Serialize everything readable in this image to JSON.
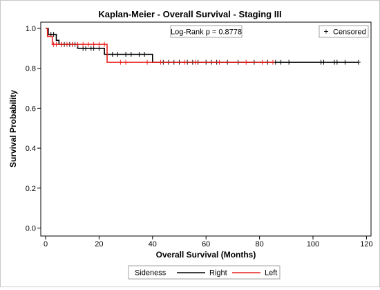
{
  "chart_data": {
    "type": "line",
    "title": "Kaplan-Meier - Overall Survival - Staging III",
    "xlabel": "Overall Survival (Months)",
    "ylabel": "Survival Probability",
    "xlim": [
      0,
      120
    ],
    "ylim": [
      0.0,
      1.0
    ],
    "xticks": [
      0,
      20,
      40,
      60,
      80,
      100,
      120
    ],
    "yticks": [
      "0.0",
      "0.2",
      "0.4",
      "0.6",
      "0.8",
      "1.0"
    ],
    "grid": false,
    "annotation": "Log-Rank p = 0.8778",
    "censor_legend": {
      "symbol": "+",
      "label": "Censored"
    },
    "legend_title": "Sideness",
    "legend_position": "bottom",
    "series": [
      {
        "name": "Right",
        "color": "#000000",
        "steps": [
          [
            0,
            1.0
          ],
          [
            1,
            0.97
          ],
          [
            4,
            0.94
          ],
          [
            5,
            0.92
          ],
          [
            12,
            0.9
          ],
          [
            13,
            0.9
          ],
          [
            22,
            0.87
          ],
          [
            40,
            0.83
          ],
          [
            117,
            0.83
          ]
        ],
        "censored": [
          [
            2,
            0.97
          ],
          [
            3,
            0.97
          ],
          [
            6,
            0.92
          ],
          [
            7,
            0.92
          ],
          [
            8,
            0.92
          ],
          [
            9,
            0.92
          ],
          [
            10,
            0.92
          ],
          [
            11,
            0.92
          ],
          [
            14,
            0.9
          ],
          [
            15,
            0.9
          ],
          [
            17,
            0.9
          ],
          [
            18,
            0.9
          ],
          [
            20,
            0.9
          ],
          [
            25,
            0.87
          ],
          [
            27,
            0.87
          ],
          [
            30,
            0.87
          ],
          [
            32,
            0.87
          ],
          [
            35,
            0.87
          ],
          [
            37,
            0.87
          ],
          [
            44,
            0.83
          ],
          [
            46,
            0.83
          ],
          [
            48,
            0.83
          ],
          [
            50,
            0.83
          ],
          [
            53,
            0.83
          ],
          [
            55,
            0.83
          ],
          [
            57,
            0.83
          ],
          [
            60,
            0.83
          ],
          [
            62,
            0.83
          ],
          [
            64,
            0.83
          ],
          [
            68,
            0.83
          ],
          [
            72,
            0.83
          ],
          [
            78,
            0.83
          ],
          [
            83,
            0.83
          ],
          [
            86,
            0.83
          ],
          [
            88,
            0.83
          ],
          [
            91,
            0.83
          ],
          [
            103,
            0.83
          ],
          [
            104,
            0.83
          ],
          [
            108,
            0.83
          ],
          [
            109,
            0.83
          ],
          [
            112,
            0.83
          ],
          [
            117,
            0.83
          ]
        ]
      },
      {
        "name": "Left",
        "color": "#e8201e",
        "steps": [
          [
            0,
            1.0
          ],
          [
            0.7,
            0.96
          ],
          [
            2.5,
            0.92
          ],
          [
            23,
            0.83
          ],
          [
            85,
            0.83
          ]
        ],
        "censored": [
          [
            3,
            0.92
          ],
          [
            4,
            0.92
          ],
          [
            6,
            0.92
          ],
          [
            8,
            0.92
          ],
          [
            10,
            0.92
          ],
          [
            12,
            0.92
          ],
          [
            14,
            0.92
          ],
          [
            16,
            0.92
          ],
          [
            18,
            0.92
          ],
          [
            20,
            0.92
          ],
          [
            22,
            0.92
          ],
          [
            28,
            0.83
          ],
          [
            30,
            0.83
          ],
          [
            38,
            0.83
          ],
          [
            43,
            0.83
          ],
          [
            52,
            0.83
          ],
          [
            56,
            0.83
          ],
          [
            65,
            0.83
          ],
          [
            75,
            0.83
          ],
          [
            81,
            0.83
          ],
          [
            85,
            0.83
          ]
        ]
      }
    ]
  }
}
